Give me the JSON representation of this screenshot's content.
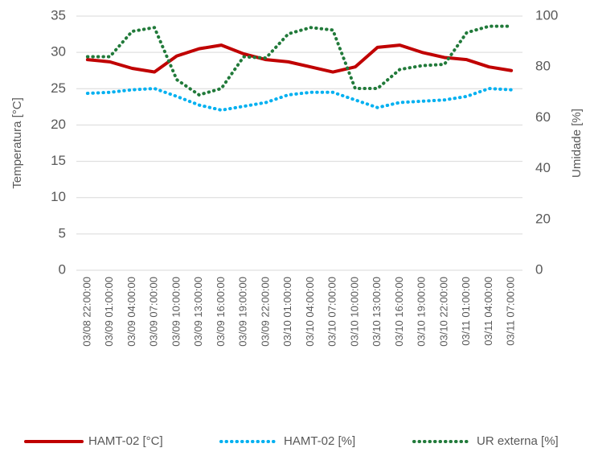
{
  "chart_data": {
    "type": "line",
    "y_label": "Temperatura [°C]",
    "y2_label": "Umidade [%]",
    "categories": [
      "03/08  22:00:00",
      "03/09  01:00:00",
      "03/09  04:00:00",
      "03/09  07:00:00",
      "03/09  10:00:00",
      "03/09  13:00:00",
      "03/09  16:00:00",
      "03/09  19:00:00",
      "03/09  22:00:00",
      "03/10  01:00:00",
      "03/10  04:00:00",
      "03/10  07:00:00",
      "03/10  10:00:00",
      "03/10  13:00:00",
      "03/10  16:00:00",
      "03/10  19:00:00",
      "03/10  22:00:00",
      "03/11  01:00:00",
      "03/11  04:00:00",
      "03/11  07:00:00"
    ],
    "series": [
      {
        "name": "HAMT-02 [°C]",
        "color": "#c00000",
        "style": "solid",
        "values": [
          29,
          28.7,
          27.8,
          27.3,
          29.5,
          30.5,
          31,
          29.8,
          29,
          28.7,
          28,
          27.3,
          28,
          30.7,
          31,
          30,
          29.3,
          29,
          28,
          27.5
        ]
      },
      {
        "name": "HAMT-02 [%]",
        "color": "#00b0f0",
        "style": "dotted",
        "axis": "y2",
        "values": [
          69.6,
          70,
          71,
          71.5,
          68.4,
          65,
          63,
          64.5,
          66,
          69,
          70,
          70,
          67,
          64,
          66,
          66.5,
          67,
          68.4,
          71.5,
          71
        ]
      },
      {
        "name": "UR externa [%]",
        "color": "#217a3a",
        "style": "dotted",
        "axis": "y2",
        "values": [
          84,
          84,
          94,
          95.5,
          75,
          69,
          71.5,
          84,
          83.5,
          93,
          95.5,
          94.5,
          71.5,
          71.5,
          79,
          80.5,
          81,
          93.5,
          96,
          96
        ]
      }
    ],
    "ylim": [
      0,
      35
    ],
    "yticks": [
      0,
      5,
      10,
      15,
      20,
      25,
      30,
      35
    ],
    "y2lim": [
      0,
      100
    ],
    "y2ticks": [
      0,
      20,
      40,
      60,
      80,
      100
    ],
    "grid": true,
    "legend": "bottom"
  }
}
